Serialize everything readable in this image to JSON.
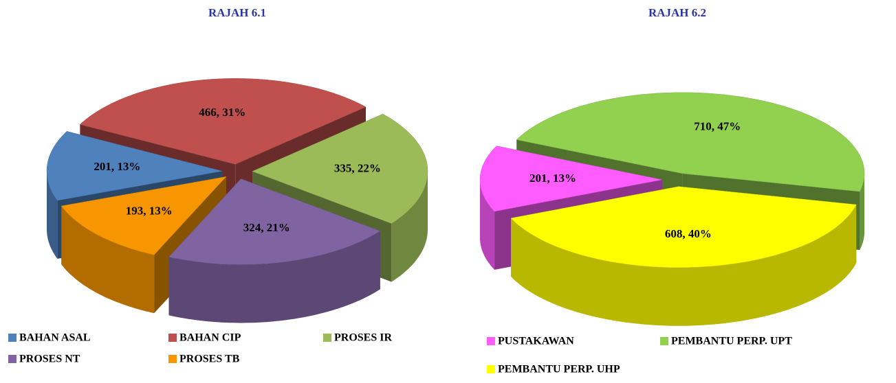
{
  "chart_data": [
    {
      "type": "pie",
      "title": "RAJAH 6.1",
      "categories": [
        "BAHAN ASAL",
        "BAHAN CIP",
        "PROSES IR",
        "PROSES NT",
        "PROSES TB"
      ],
      "values": [
        201,
        466,
        335,
        324,
        193
      ],
      "value_labels": [
        "201, 13%",
        "466, 31%",
        "335, 22%",
        "324, 21%",
        "193, 13%"
      ],
      "colors": [
        "#4f81bd",
        "#c0504d",
        "#9bbb59",
        "#8064a2",
        "#f79600"
      ]
    },
    {
      "type": "pie",
      "title": "RAJAH 6.2",
      "categories": [
        "PUSTAKAWAN",
        "PEMBANTU PERP. UPT",
        "PEMBANTU PERP. UHP"
      ],
      "values": [
        201,
        710,
        608
      ],
      "value_labels": [
        "201, 13%",
        "710, 47%",
        "608, 40%"
      ],
      "colors": [
        "#ff5cff",
        "#92d050",
        "#ffff00"
      ]
    }
  ]
}
